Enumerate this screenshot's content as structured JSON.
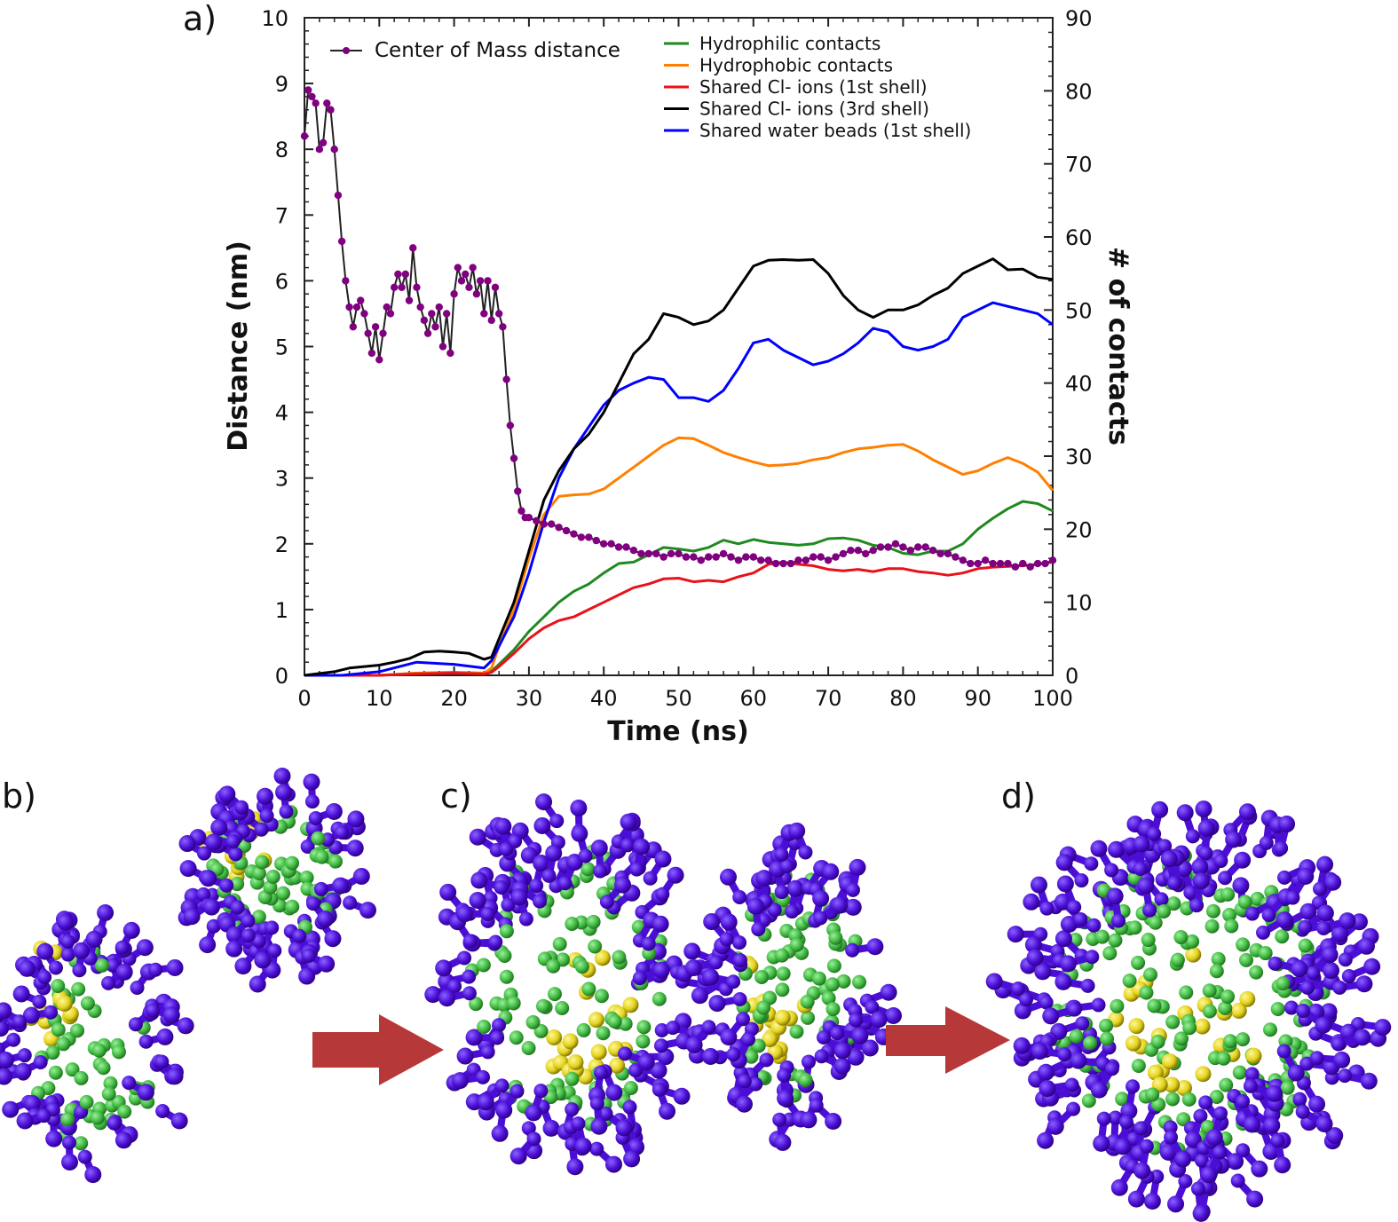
{
  "chart_data": {
    "type": "line",
    "panel_label": "a)",
    "xlabel": "Time (ns)",
    "ylabel_left": "Distance (nm)",
    "ylabel_right": "# of contacts",
    "xlim": [
      0,
      100
    ],
    "ylim_left": [
      0,
      10
    ],
    "ylim_right": [
      0,
      90
    ],
    "x_ticks": [
      "0",
      "10",
      "20",
      "30",
      "40",
      "50",
      "60",
      "70",
      "80",
      "90",
      "100"
    ],
    "y_left_ticks": [
      "0",
      "1",
      "2",
      "3",
      "4",
      "5",
      "6",
      "7",
      "8",
      "9",
      "10"
    ],
    "y_right_ticks": [
      "0",
      "10",
      "20",
      "30",
      "40",
      "50",
      "60",
      "70",
      "80",
      "90"
    ],
    "legend_left": "top-left",
    "legend_right": "top-right",
    "series": [
      {
        "name": "Center of Mass distance",
        "axis": "left",
        "color": "#800080",
        "marker": true,
        "x": [
          0,
          0.5,
          1,
          1.5,
          2,
          2.5,
          3,
          3.5,
          4,
          4.5,
          5,
          5.5,
          6,
          6.5,
          7,
          7.5,
          8,
          8.5,
          9,
          9.5,
          10,
          10.5,
          11,
          11.5,
          12,
          12.5,
          13,
          13.5,
          14,
          14.5,
          15,
          15.5,
          16,
          16.5,
          17,
          17.5,
          18,
          18.5,
          19,
          19.5,
          20,
          20.5,
          21,
          21.5,
          22,
          22.5,
          23,
          23.5,
          24,
          24.5,
          25,
          25.5,
          26,
          26.5,
          27,
          27.5,
          28,
          28.5,
          29,
          29.5,
          30,
          31,
          32,
          33,
          34,
          35,
          36,
          37,
          38,
          39,
          40,
          41,
          42,
          43,
          44,
          45,
          46,
          47,
          48,
          49,
          50,
          51,
          52,
          53,
          54,
          55,
          56,
          57,
          58,
          59,
          60,
          61,
          62,
          63,
          64,
          65,
          66,
          67,
          68,
          69,
          70,
          71,
          72,
          73,
          74,
          75,
          76,
          77,
          78,
          79,
          80,
          81,
          82,
          83,
          84,
          85,
          86,
          87,
          88,
          89,
          90,
          91,
          92,
          93,
          94,
          95,
          96,
          97,
          98,
          99,
          100
        ],
        "y": [
          8.2,
          8.9,
          8.8,
          8.7,
          8.0,
          8.1,
          8.7,
          8.6,
          8.0,
          7.3,
          6.6,
          6.0,
          5.6,
          5.3,
          5.6,
          5.7,
          5.5,
          5.2,
          4.9,
          5.3,
          4.8,
          5.2,
          5.6,
          5.5,
          5.9,
          6.1,
          5.9,
          6.1,
          5.7,
          6.5,
          5.9,
          5.6,
          5.4,
          5.2,
          5.5,
          5.3,
          5.6,
          5.0,
          5.5,
          4.9,
          5.8,
          6.2,
          6.0,
          6.1,
          5.9,
          6.2,
          5.8,
          6.0,
          5.5,
          6.0,
          5.4,
          5.9,
          5.5,
          5.3,
          4.5,
          3.8,
          3.3,
          2.8,
          2.5,
          2.4,
          2.4,
          2.35,
          2.3,
          2.3,
          2.25,
          2.2,
          2.15,
          2.1,
          2.1,
          2.05,
          2.0,
          2.0,
          1.95,
          1.95,
          1.9,
          1.85,
          1.85,
          1.85,
          1.8,
          1.85,
          1.85,
          1.8,
          1.8,
          1.75,
          1.8,
          1.8,
          1.85,
          1.8,
          1.75,
          1.8,
          1.8,
          1.75,
          1.75,
          1.7,
          1.7,
          1.7,
          1.75,
          1.75,
          1.8,
          1.8,
          1.75,
          1.8,
          1.85,
          1.9,
          1.9,
          1.85,
          1.9,
          1.95,
          1.95,
          2.0,
          1.95,
          1.9,
          1.95,
          1.95,
          1.9,
          1.85,
          1.85,
          1.8,
          1.75,
          1.7,
          1.7,
          1.75,
          1.7,
          1.7,
          1.7,
          1.65,
          1.7,
          1.65,
          1.7,
          1.7,
          1.75
        ]
      },
      {
        "name": "Hydrophilic contacts",
        "axis": "right",
        "color": "#1f8a1f",
        "x": [
          0,
          5,
          10,
          15,
          20,
          24,
          25,
          26,
          28,
          30,
          32,
          34,
          36,
          38,
          40,
          42,
          44,
          46,
          48,
          50,
          52,
          54,
          56,
          58,
          60,
          62,
          64,
          66,
          68,
          70,
          72,
          74,
          76,
          78,
          80,
          82,
          84,
          86,
          88,
          90,
          92,
          94,
          96,
          98,
          100
        ],
        "y": [
          0,
          0,
          0,
          0.3,
          0.4,
          0.3,
          0.6,
          1.5,
          3.5,
          6,
          8,
          10,
          11.5,
          12.5,
          14,
          15.3,
          15.5,
          16.5,
          17.5,
          17.3,
          17,
          17.5,
          18.5,
          18,
          18.6,
          18.2,
          18,
          17.8,
          18,
          18.7,
          18.8,
          18.5,
          17.8,
          17.5,
          16.7,
          16.5,
          17,
          17,
          18,
          20,
          21.5,
          22.8,
          23.8,
          23.5,
          22.5
        ]
      },
      {
        "name": "Hydrophobic contacts",
        "axis": "right",
        "color": "#ff8000",
        "x": [
          0,
          5,
          10,
          15,
          20,
          24,
          25,
          26,
          28,
          30,
          32,
          34,
          36,
          38,
          40,
          42,
          44,
          46,
          48,
          50,
          52,
          54,
          56,
          58,
          60,
          62,
          64,
          66,
          68,
          70,
          72,
          74,
          76,
          78,
          80,
          82,
          84,
          86,
          88,
          90,
          92,
          94,
          96,
          98,
          100
        ],
        "y": [
          0,
          0,
          0,
          0.3,
          0.3,
          0.3,
          1,
          4,
          9,
          16,
          22,
          24.5,
          24.7,
          24.8,
          25.5,
          27,
          28.5,
          30,
          31.5,
          32.5,
          32.4,
          31.5,
          30.5,
          29.8,
          29.2,
          28.7,
          28.8,
          29,
          29.5,
          29.8,
          30.5,
          31,
          31.2,
          31.5,
          31.6,
          30.7,
          29.5,
          28.5,
          27.5,
          28,
          29,
          29.8,
          29,
          27.8,
          25.3
        ]
      },
      {
        "name": "Shared Cl- ions (1st shell)",
        "axis": "right",
        "color": "#e8121a",
        "x": [
          0,
          5,
          10,
          15,
          20,
          24,
          25,
          26,
          28,
          30,
          32,
          34,
          36,
          38,
          40,
          42,
          44,
          46,
          48,
          50,
          52,
          54,
          56,
          58,
          60,
          62,
          64,
          66,
          68,
          70,
          72,
          74,
          76,
          78,
          80,
          82,
          84,
          86,
          88,
          90,
          92,
          94,
          96,
          98,
          100
        ],
        "y": [
          0,
          0,
          0,
          0.2,
          0.3,
          0.2,
          0.4,
          1.2,
          3,
          5,
          6.5,
          7.5,
          8,
          9,
          10,
          11,
          12,
          12.5,
          13.2,
          13.3,
          12.8,
          13,
          12.8,
          13.5,
          14,
          15.2,
          15.5,
          15.2,
          15,
          14.5,
          14.3,
          14.5,
          14.2,
          14.6,
          14.6,
          14.2,
          14,
          13.7,
          14,
          14.6,
          14.8,
          14.9,
          15,
          15.2,
          15.5
        ]
      },
      {
        "name": "Shared Cl- ions (3rd shell)",
        "axis": "right",
        "color": "#000000",
        "x": [
          0,
          4,
          6,
          8,
          10,
          12,
          14,
          16,
          18,
          20,
          22,
          24,
          25,
          26,
          28,
          30,
          32,
          34,
          36,
          38,
          40,
          42,
          44,
          46,
          48,
          50,
          52,
          54,
          56,
          58,
          60,
          62,
          64,
          66,
          68,
          70,
          72,
          74,
          76,
          78,
          80,
          82,
          84,
          86,
          88,
          90,
          92,
          94,
          96,
          98,
          100
        ],
        "y": [
          0,
          0.5,
          1,
          1.2,
          1.4,
          1.8,
          2.3,
          3.2,
          3.3,
          3.2,
          3.0,
          2.2,
          2.5,
          5,
          10,
          17,
          24,
          28,
          31,
          33,
          36,
          40,
          44,
          46,
          49.5,
          49,
          48,
          48.5,
          50,
          53,
          56,
          56.8,
          56.9,
          56.8,
          56.9,
          55,
          52,
          50,
          49,
          50,
          50,
          50.7,
          52,
          53,
          55,
          56,
          57,
          55.5,
          55.6,
          54.5,
          54.2
        ]
      },
      {
        "name": "Shared water beads  (1st shell)",
        "axis": "right",
        "color": "#0000ff",
        "x": [
          0,
          5,
          10,
          15,
          20,
          24,
          25,
          26,
          28,
          30,
          32,
          34,
          36,
          38,
          40,
          42,
          44,
          46,
          48,
          50,
          52,
          54,
          56,
          58,
          60,
          62,
          64,
          66,
          68,
          70,
          72,
          74,
          76,
          78,
          80,
          82,
          84,
          86,
          88,
          90,
          92,
          94,
          96,
          98,
          100
        ],
        "y": [
          0,
          0,
          0.5,
          1.8,
          1.5,
          1,
          2,
          4,
          8,
          14,
          21,
          27,
          31,
          34,
          37,
          39,
          40,
          40.8,
          40.5,
          38,
          38,
          37.5,
          39,
          42,
          45.5,
          46,
          44.5,
          43.5,
          42.5,
          43,
          44,
          45.5,
          47.5,
          47,
          45,
          44.5,
          45,
          46,
          49,
          50,
          51,
          50.5,
          50,
          49.5,
          48
        ]
      }
    ]
  },
  "panels": {
    "b_label": "b)",
    "c_label": "c)",
    "d_label": "d)"
  },
  "colors": {
    "headgroup": "#4b0ed6",
    "tail": "#3fb83f",
    "core": "#e3d21c",
    "arrow": "#b73838"
  }
}
